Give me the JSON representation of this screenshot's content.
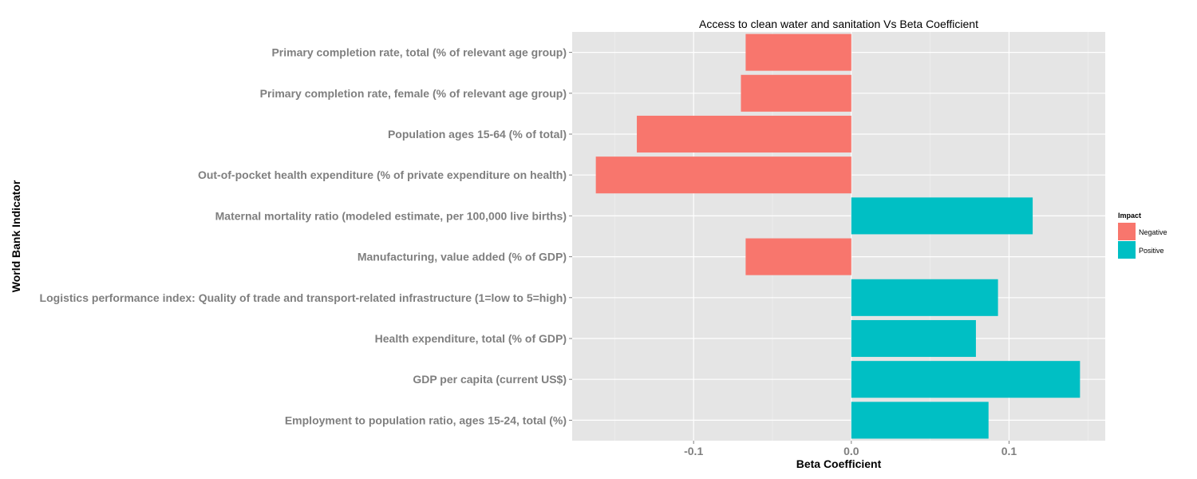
{
  "chart_data": {
    "type": "bar",
    "orientation": "horizontal",
    "title": "Access to clean water and sanitation Vs Beta Coefficient",
    "xlabel": "Beta Coefficient",
    "ylabel": "World Bank Indicator",
    "xlim": [
      -0.177,
      0.161
    ],
    "xticks": [
      {
        "value": -0.1,
        "label": "-0.1"
      },
      {
        "value": 0.0,
        "label": "0.0"
      },
      {
        "value": 0.1,
        "label": "0.1"
      }
    ],
    "grid": true,
    "legend": {
      "title": "Impact",
      "placement": "right",
      "entries": [
        {
          "label": "Negative",
          "color": "#F8766D"
        },
        {
          "label": "Positive",
          "color": "#00BFC4"
        }
      ]
    },
    "background": "#E5E5E5",
    "gridline_color": "#FFFFFF",
    "categories": [
      "Primary completion rate, total (% of relevant age group)",
      "Primary completion rate, female (% of relevant age group)",
      "Population ages 15-64 (% of total)",
      "Out-of-pocket health expenditure (% of private expenditure on health)",
      "Maternal mortality ratio (modeled estimate, per 100,000 live births)",
      "Manufacturing, value added (% of GDP)",
      "Logistics performance index: Quality of trade and transport-related infrastructure (1=low to 5=high)",
      "Health expenditure, total (% of GDP)",
      "GDP per capita (current US$)",
      "Employment to population ratio, ages 15-24, total (%)"
    ],
    "values": [
      -0.067,
      -0.07,
      -0.136,
      -0.162,
      0.115,
      -0.067,
      0.093,
      0.079,
      0.145,
      0.087
    ],
    "impact": [
      "Negative",
      "Negative",
      "Negative",
      "Negative",
      "Positive",
      "Negative",
      "Positive",
      "Positive",
      "Positive",
      "Positive"
    ]
  }
}
